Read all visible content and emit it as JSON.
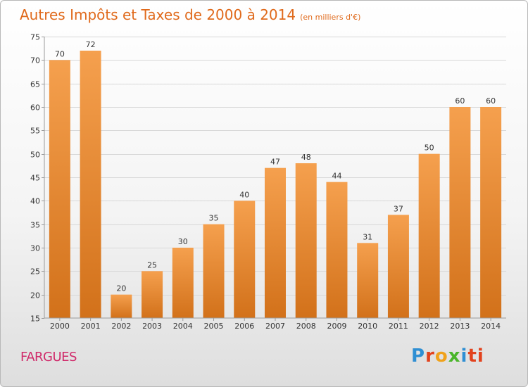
{
  "header": {
    "title": "Autres Impôts et Taxes de 2000 à 2014",
    "subtitle": "(en milliers d'€)"
  },
  "location": "FARGUES",
  "logo": {
    "text": "Proxiti",
    "letters": [
      "P",
      "r",
      "o",
      "x",
      "i",
      "ti"
    ]
  },
  "colors": {
    "bar_light": "#f5a04e",
    "bar_dark": "#d2711a",
    "title": "#e06a1c",
    "location": "#d02a6a",
    "grid": "#d8d8d8"
  },
  "chart_data": {
    "type": "bar",
    "categories": [
      "2000",
      "2001",
      "2002",
      "2003",
      "2004",
      "2005",
      "2006",
      "2007",
      "2008",
      "2009",
      "2010",
      "2011",
      "2012",
      "2013",
      "2014"
    ],
    "values": [
      70,
      72,
      20,
      25,
      30,
      35,
      40,
      47,
      48,
      44,
      31,
      37,
      50,
      60,
      60
    ],
    "ylim": [
      15,
      75
    ],
    "yticks": [
      15,
      20,
      25,
      30,
      35,
      40,
      45,
      50,
      55,
      60,
      65,
      70,
      75
    ],
    "grid": true,
    "data_labels": true
  }
}
